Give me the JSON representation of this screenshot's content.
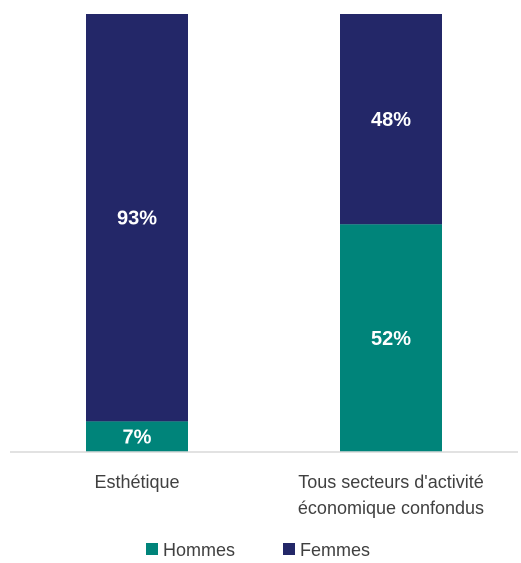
{
  "chart_data": {
    "type": "bar",
    "stacked": true,
    "normalized": true,
    "categories": [
      [
        "Esthétique"
      ],
      [
        "Tous secteurs d'activité",
        "économique confondus"
      ]
    ],
    "series": [
      {
        "name": "Hommes",
        "values": [
          7,
          52
        ],
        "labels": [
          "7%",
          "52%"
        ],
        "color": "#00847a"
      },
      {
        "name": "Femmes",
        "values": [
          93,
          48
        ],
        "labels": [
          "93%",
          "48%"
        ],
        "color": "#232768"
      }
    ],
    "ylim": [
      0,
      100
    ],
    "unit": "%",
    "grid": false,
    "legend": "bottom-center"
  }
}
